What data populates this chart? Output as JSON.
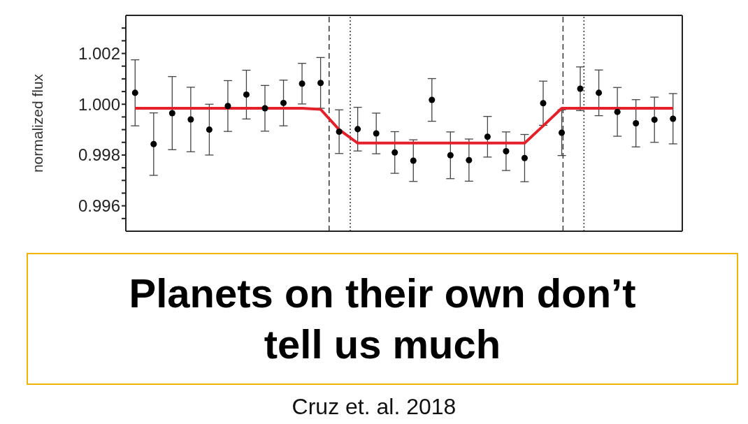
{
  "chart_data": {
    "type": "scatter",
    "title": "Planets on their own don’t tell us much",
    "annotations": [
      "Cruz et. al. 2018"
    ],
    "ylabel": "normalized flux",
    "categories": [
      null,
      null,
      null,
      null,
      null,
      null,
      null,
      null,
      null,
      null,
      null,
      null,
      null,
      null,
      null,
      null,
      null,
      null,
      null,
      null,
      null,
      null,
      null,
      null,
      null,
      null,
      null,
      null,
      null,
      null
    ],
    "ylim": [
      0.995,
      1.0035
    ],
    "yticks": [
      {
        "value": 0.9955,
        "label": null
      },
      {
        "value": 0.996,
        "label": "0.996"
      },
      {
        "value": 0.9965,
        "label": null
      },
      {
        "value": 0.997,
        "label": null
      },
      {
        "value": 0.9975,
        "label": null
      },
      {
        "value": 0.998,
        "label": "0.998"
      },
      {
        "value": 0.9985,
        "label": null
      },
      {
        "value": 0.999,
        "label": null
      },
      {
        "value": 0.9995,
        "label": null
      },
      {
        "value": 1,
        "label": "1.000"
      },
      {
        "value": 1.0005,
        "label": null
      },
      {
        "value": 1.001,
        "label": null
      },
      {
        "value": 1.0015,
        "label": null
      },
      {
        "value": 1.002,
        "label": "1.002"
      },
      {
        "value": 1.0025,
        "label": null
      },
      {
        "value": 1.003,
        "label": null
      }
    ],
    "tick_labels": "y",
    "grid": false,
    "legend": false,
    "series": [
      {
        "color": "#000000",
        "marker": "circle",
        "values": [
          1.00045,
          0.99843,
          0.99965,
          0.9994,
          0.999,
          0.99993,
          1.00038,
          0.99984,
          1.00005,
          1.00081,
          1.00084,
          0.99892,
          0.99902,
          0.99885,
          0.9981,
          0.99778,
          1.00017,
          0.99799,
          0.9978,
          0.99872,
          0.99815,
          0.99788,
          1.00004,
          0.99888,
          1.00061,
          1.00045,
          0.9997,
          0.99925,
          0.99939,
          0.99943
        ],
        "errors": [
          0.0013,
          0.00123,
          0.00144,
          0.00127,
          0.001,
          0.001,
          0.00096,
          0.0009,
          0.0009,
          0.0008,
          0.001,
          0.00086,
          0.00086,
          0.0008,
          0.00082,
          0.00082,
          0.00084,
          0.00092,
          0.00083,
          0.0008,
          0.00076,
          0.00093,
          0.00087,
          0.0009,
          0.00086,
          0.0009,
          0.00096,
          0.00093,
          0.00089,
          0.00099
        ]
      },
      {
        "type": "line",
        "color": "#e3212b",
        "line_style": "solid",
        "values": [
          0.99984,
          0.99984,
          0.99984,
          0.99984,
          0.99984,
          0.99984,
          0.99984,
          0.99984,
          0.99984,
          0.99984,
          0.9998,
          0.999,
          0.99847,
          0.99847,
          0.99847,
          0.99847,
          0.99847,
          0.99847,
          0.99847,
          0.99847,
          0.99847,
          0.99847,
          0.99915,
          0.99984,
          0.99984,
          0.99984,
          0.99984,
          0.99984,
          0.99984,
          0.99984
        ]
      }
    ]
  }
}
